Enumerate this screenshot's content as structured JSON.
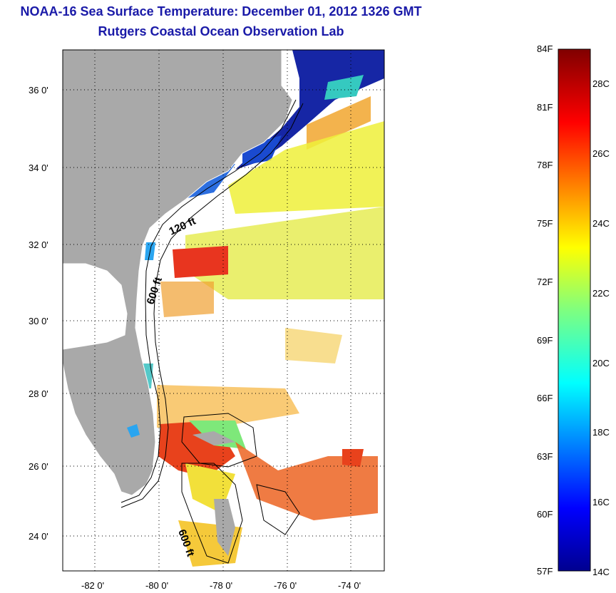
{
  "title": {
    "line1": "NOAA-16 Sea Surface Temperature:  December 01, 2012 1326 GMT",
    "line2": "Rutgers Coastal Ocean Observation Lab"
  },
  "map": {
    "lon_range": [
      -83,
      -73
    ],
    "lat_range": [
      23,
      37
    ],
    "lon_ticks": [
      "-82 0'",
      "-80 0'",
      "-78 0'",
      "-76 0'",
      "-74 0'"
    ],
    "lat_ticks": [
      "36 0'",
      "34 0'",
      "32 0'",
      "30 0'",
      "28 0'",
      "26 0'",
      "24 0'"
    ],
    "contour_labels": [
      {
        "text": "120 ft",
        "key": "c120"
      },
      {
        "text": "600 ft",
        "key": "c600a"
      },
      {
        "text": "600 ft",
        "key": "c600b"
      }
    ],
    "colors": {
      "land": "#a9a9a9",
      "no_data": "#ffffff",
      "grid": "#000000"
    }
  },
  "colorbar": {
    "fahrenheit_labels": [
      "84F",
      "81F",
      "78F",
      "75F",
      "72F",
      "69F",
      "66F",
      "63F",
      "60F",
      "57F"
    ],
    "celsius_labels": [
      "28C",
      "26C",
      "24C",
      "22C",
      "20C",
      "18C",
      "16C",
      "14C"
    ],
    "range_f": [
      57,
      84
    ],
    "range_c": [
      14,
      29
    ],
    "colormap": "jet"
  }
}
